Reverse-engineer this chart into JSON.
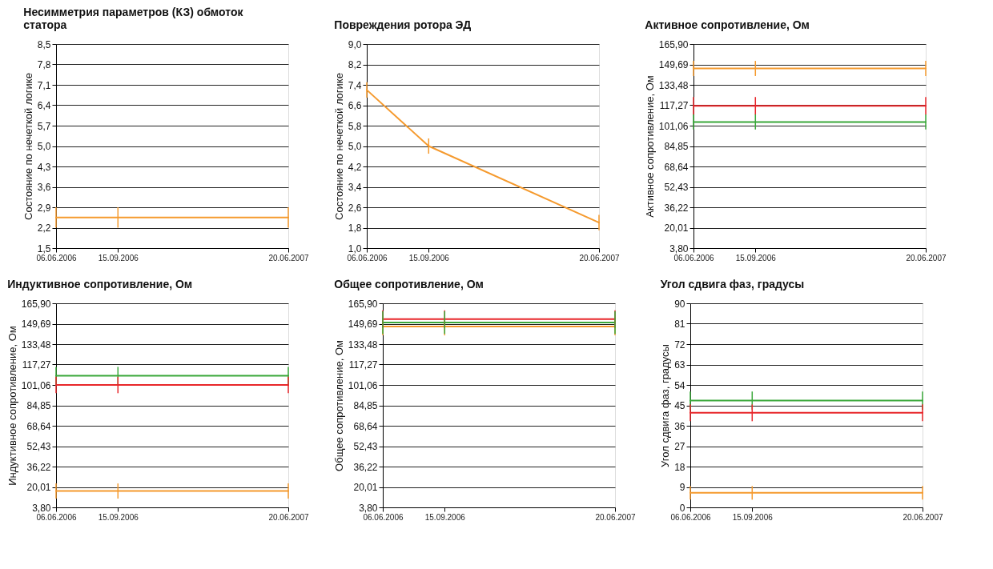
{
  "chart_data": [
    {
      "type": "line",
      "title": "Несимметрия параметров (КЗ) обмоток статора",
      "ylabel": "Состояние по нечеткой логике",
      "x": [
        "2006-06-06",
        "2006-09-15",
        "2007-06-20"
      ],
      "xlim": [
        "2006-06-06",
        "2007-06-20"
      ],
      "xticks": [
        {
          "value": "2006-06-06",
          "label": "06.06.2006"
        },
        {
          "value": "2006-09-15",
          "label": "15.09.2006"
        },
        {
          "value": "2007-06-20",
          "label": "20.06.2007"
        }
      ],
      "ylim": [
        1.5,
        8.5
      ],
      "yticks": [
        {
          "value": 1.5,
          "label": "1,5"
        },
        {
          "value": 2.2,
          "label": "2,2"
        },
        {
          "value": 2.9,
          "label": "2,9"
        },
        {
          "value": 3.6,
          "label": "3,6"
        },
        {
          "value": 4.3,
          "label": "4,3"
        },
        {
          "value": 5,
          "label": "5,0"
        },
        {
          "value": 5.7,
          "label": "5,7"
        },
        {
          "value": 6.4,
          "label": "6,4"
        },
        {
          "value": 7.1,
          "label": "7,1"
        },
        {
          "value": 7.8,
          "label": "7,8"
        },
        {
          "value": 8.5,
          "label": "8,5"
        }
      ],
      "grid": "y",
      "series": [
        {
          "color": "#f59a2e",
          "values": [
            2.55,
            2.55,
            2.55
          ],
          "errors": [
            0.35,
            0.35,
            0.35
          ]
        }
      ]
    },
    {
      "type": "line",
      "title": "Повреждения ротора ЭД",
      "ylabel": "Состояние по нечеткой логике",
      "x": [
        "2006-06-06",
        "2006-09-15",
        "2007-06-20"
      ],
      "xlim": [
        "2006-06-06",
        "2007-06-20"
      ],
      "xticks": [
        {
          "value": "2006-06-06",
          "label": "06.06.2006"
        },
        {
          "value": "2006-09-15",
          "label": "15.09.2006"
        },
        {
          "value": "2007-06-20",
          "label": "20.06.2007"
        }
      ],
      "ylim": [
        1,
        9
      ],
      "yticks": [
        {
          "value": 1,
          "label": "1,0"
        },
        {
          "value": 1.8,
          "label": "1,8"
        },
        {
          "value": 2.6,
          "label": "2,6"
        },
        {
          "value": 3.4,
          "label": "3,4"
        },
        {
          "value": 4.2,
          "label": "4,2"
        },
        {
          "value": 5,
          "label": "5,0"
        },
        {
          "value": 5.8,
          "label": "5,8"
        },
        {
          "value": 6.6,
          "label": "6,6"
        },
        {
          "value": 7.4,
          "label": "7,4"
        },
        {
          "value": 8.2,
          "label": "8,2"
        },
        {
          "value": 9,
          "label": "9,0"
        }
      ],
      "grid": "y",
      "series": [
        {
          "color": "#f59a2e",
          "values": [
            7.2,
            5.0,
            2.0
          ],
          "errors": [
            0.3,
            0.3,
            0.3
          ]
        }
      ]
    },
    {
      "type": "line",
      "title": "Активное сопротивление, Ом",
      "ylabel": "Активное сопротивление, Ом",
      "x": [
        "2006-06-06",
        "2006-09-15",
        "2007-06-20"
      ],
      "xlim": [
        "2006-06-06",
        "2007-06-20"
      ],
      "xticks": [
        {
          "value": "2006-06-06",
          "label": "06.06.2006"
        },
        {
          "value": "2006-09-15",
          "label": "15.09.2006"
        },
        {
          "value": "2007-06-20",
          "label": "20.06.2007"
        }
      ],
      "ylim": [
        3.8,
        165.9
      ],
      "yticks": [
        {
          "value": 3.8,
          "label": "3,80"
        },
        {
          "value": 20.01,
          "label": "20,01"
        },
        {
          "value": 36.22,
          "label": "36,22"
        },
        {
          "value": 52.43,
          "label": "52,43"
        },
        {
          "value": 68.64,
          "label": "68,64"
        },
        {
          "value": 84.85,
          "label": "84,85"
        },
        {
          "value": 101.06,
          "label": "101,06"
        },
        {
          "value": 117.27,
          "label": "117,27"
        },
        {
          "value": 133.48,
          "label": "133,48"
        },
        {
          "value": 149.69,
          "label": "149,69"
        },
        {
          "value": 165.9,
          "label": "165,90"
        }
      ],
      "grid": "y",
      "series": [
        {
          "color": "#f59a2e",
          "values": [
            146.5,
            146.5,
            146.5
          ],
          "errors": [
            6,
            6,
            6
          ]
        },
        {
          "color": "#e8262a",
          "values": [
            116.8,
            116.8,
            116.8
          ],
          "errors": [
            7,
            7,
            7
          ]
        },
        {
          "color": "#3aa83a",
          "values": [
            104,
            104,
            104
          ],
          "errors": [
            6,
            6,
            6
          ]
        }
      ]
    },
    {
      "type": "line",
      "title": "Индуктивное сопротивление, Ом",
      "ylabel": "Индуктивное сопротивление, Ом",
      "x": [
        "2006-06-06",
        "2006-09-15",
        "2007-06-20"
      ],
      "xlim": [
        "2006-06-06",
        "2007-06-20"
      ],
      "xticks": [
        {
          "value": "2006-06-06",
          "label": "06.06.2006"
        },
        {
          "value": "2006-09-15",
          "label": "15.09.2006"
        },
        {
          "value": "2007-06-20",
          "label": "20.06.2007"
        }
      ],
      "ylim": [
        3.8,
        165.9
      ],
      "yticks": [
        {
          "value": 3.8,
          "label": "3,80"
        },
        {
          "value": 20.01,
          "label": "20,01"
        },
        {
          "value": 36.22,
          "label": "36,22"
        },
        {
          "value": 52.43,
          "label": "52,43"
        },
        {
          "value": 68.64,
          "label": "68,64"
        },
        {
          "value": 84.85,
          "label": "84,85"
        },
        {
          "value": 101.06,
          "label": "101,06"
        },
        {
          "value": 117.27,
          "label": "117,27"
        },
        {
          "value": 133.48,
          "label": "133,48"
        },
        {
          "value": 149.69,
          "label": "149,69"
        },
        {
          "value": 165.9,
          "label": "165,90"
        }
      ],
      "grid": "y",
      "series": [
        {
          "color": "#3aa83a",
          "values": [
            108.4,
            108.4,
            108.4
          ],
          "errors": [
            7,
            7,
            7
          ]
        },
        {
          "color": "#e8262a",
          "values": [
            101,
            101,
            101
          ],
          "errors": [
            6.5,
            6.5,
            6.5
          ]
        },
        {
          "color": "#f59a2e",
          "values": [
            16.8,
            16.8,
            16.8
          ],
          "errors": [
            6,
            6,
            6
          ]
        }
      ]
    },
    {
      "type": "line",
      "title": "Общее сопротивление, Ом",
      "ylabel": "Общее сопротивление, Ом",
      "x": [
        "2006-06-06",
        "2006-09-15",
        "2007-06-20"
      ],
      "xlim": [
        "2006-06-06",
        "2007-06-20"
      ],
      "xticks": [
        {
          "value": "2006-06-06",
          "label": "06.06.2006"
        },
        {
          "value": "2006-09-15",
          "label": "15.09.2006"
        },
        {
          "value": "2007-06-20",
          "label": "20.06.2007"
        }
      ],
      "ylim": [
        3.8,
        165.9
      ],
      "yticks": [
        {
          "value": 3.8,
          "label": "3,80"
        },
        {
          "value": 20.01,
          "label": "20,01"
        },
        {
          "value": 36.22,
          "label": "36,22"
        },
        {
          "value": 52.43,
          "label": "52,43"
        },
        {
          "value": 68.64,
          "label": "68,64"
        },
        {
          "value": 84.85,
          "label": "84,85"
        },
        {
          "value": 101.06,
          "label": "101,06"
        },
        {
          "value": 117.27,
          "label": "117,27"
        },
        {
          "value": 133.48,
          "label": "133,48"
        },
        {
          "value": 149.69,
          "label": "149,69"
        },
        {
          "value": 165.9,
          "label": "165,90"
        }
      ],
      "grid": "y",
      "series": [
        {
          "color": "#f59a2e",
          "values": [
            147.4,
            147.4,
            147.4
          ],
          "errors": [
            7,
            7,
            7
          ]
        },
        {
          "color": "#e8262a",
          "values": [
            153.3,
            153.3,
            153.3
          ],
          "errors": [
            7,
            7,
            7
          ]
        },
        {
          "color": "#3aa83a",
          "values": [
            150.6,
            150.6,
            150.6
          ],
          "errors": [
            9,
            9,
            9
          ]
        }
      ]
    },
    {
      "type": "line",
      "title": "Угол сдвига фаз, градусы",
      "ylabel": "Угол сдвига фаз, градусы",
      "x": [
        "2006-06-06",
        "2006-09-15",
        "2007-06-20"
      ],
      "xlim": [
        "2006-06-06",
        "2007-06-20"
      ],
      "xticks": [
        {
          "value": "2006-06-06",
          "label": "06.06.2006"
        },
        {
          "value": "2006-09-15",
          "label": "15.09.2006"
        },
        {
          "value": "2007-06-20",
          "label": "20.06.2007"
        }
      ],
      "ylim": [
        0,
        90
      ],
      "yticks": [
        0,
        9,
        18,
        27,
        36,
        45,
        54,
        63,
        72,
        81,
        90
      ],
      "grid": "y",
      "series": [
        {
          "color": "#3aa83a",
          "values": [
            47.1,
            47.1,
            47.1
          ],
          "errors": [
            4,
            4,
            4
          ]
        },
        {
          "color": "#e8262a",
          "values": [
            41.7,
            41.7,
            41.7
          ],
          "errors": [
            3.7,
            3.7,
            3.7
          ]
        },
        {
          "color": "#f59a2e",
          "values": [
            6.4,
            6.4,
            6.4
          ],
          "errors": [
            3,
            3,
            3
          ]
        }
      ]
    }
  ]
}
